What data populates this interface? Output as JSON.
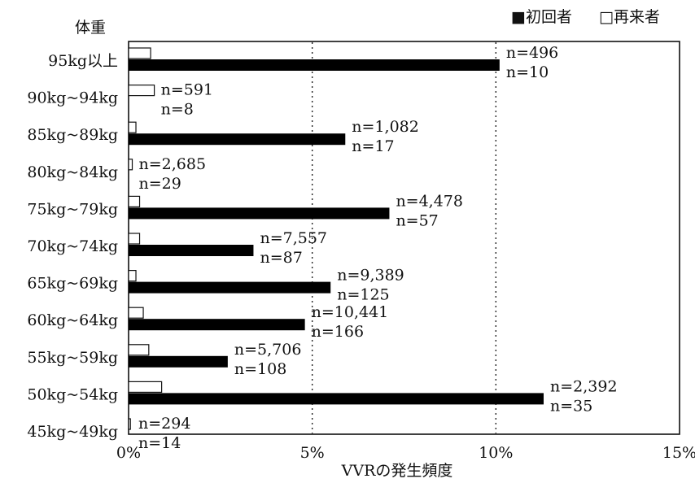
{
  "chart_data": {
    "type": "bar",
    "orientation": "horizontal",
    "ylabel": "体重",
    "xlabel": "VVRの発生頻度",
    "xlim": [
      0,
      15
    ],
    "xticks": [
      "0%",
      "5%",
      "10%",
      "15%"
    ],
    "grid": "dotted vertical lines at 5% and 10%",
    "legend_position": "top-right",
    "legend": [
      {
        "symbol": "■",
        "label": "初回者",
        "color": "#000000"
      },
      {
        "symbol": "□",
        "label": "再来者",
        "color": "#ffffff"
      }
    ],
    "categories": [
      "95kg以上",
      "90kg~94kg",
      "85kg~89kg",
      "80kg~84kg",
      "75kg~79kg",
      "70kg~74kg",
      "65kg~69kg",
      "60kg~64kg",
      "55kg~59kg",
      "50kg~54kg",
      "45kg~49kg"
    ],
    "series": [
      {
        "name": "初回者",
        "color": "#000000",
        "values": [
          10.1,
          0,
          5.9,
          0,
          7.1,
          3.4,
          5.5,
          4.8,
          2.7,
          11.3,
          0
        ],
        "n": [
          "n=10",
          "n=8",
          "n=17",
          "n=29",
          "n=57",
          "n=87",
          "n=125",
          "n=166",
          "n=108",
          "n=35",
          "n=14"
        ]
      },
      {
        "name": "再来者",
        "color": "#ffffff",
        "values": [
          0.6,
          0.7,
          0.2,
          0.1,
          0.3,
          0.3,
          0.2,
          0.4,
          0.55,
          0.9,
          0.05
        ],
        "n": [
          "n=496",
          "n=591",
          "n=1,082",
          "n=2,685",
          "n=4,478",
          "n=7,557",
          "n=9,389",
          "n=10,441",
          "n=5,706",
          "n=2,392",
          "n=294"
        ]
      }
    ]
  }
}
